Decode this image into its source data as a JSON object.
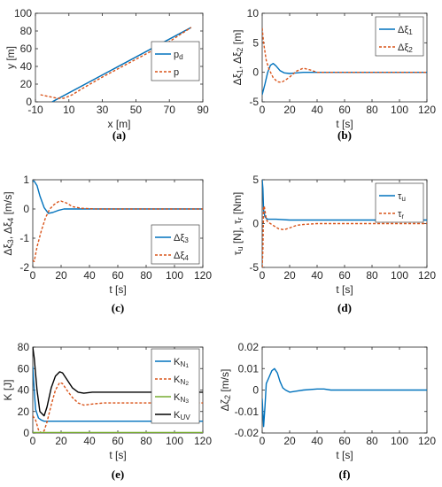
{
  "chart_data": [
    {
      "id": "a",
      "type": "line",
      "caption": "(a)",
      "xlabel": "x [m]",
      "ylabel": "y [m]",
      "xlim": [
        -10,
        90
      ],
      "ylim": [
        0,
        100
      ],
      "xticks": [
        "-10",
        "10",
        "30",
        "50",
        "70",
        "90"
      ],
      "yticks": [
        "0",
        "20",
        "40",
        "60",
        "80",
        "100"
      ],
      "legend": {
        "position": "right-middle",
        "entries": [
          "p_d",
          "p"
        ]
      },
      "series": [
        {
          "name": "p_d",
          "color": "#0072BD",
          "dash": false,
          "x": [
            0,
            83
          ],
          "y": [
            0,
            84
          ]
        },
        {
          "name": "p",
          "color": "#D95319",
          "dash": true,
          "x": [
            -7,
            -2,
            3,
            7,
            12,
            18,
            30,
            50,
            70,
            83
          ],
          "y": [
            8,
            6,
            4,
            4,
            8,
            15,
            28,
            48,
            68,
            84
          ]
        }
      ],
      "annotation_line": {
        "color": "#555555",
        "x": [
          0,
          83
        ],
        "y": [
          0,
          84
        ]
      }
    },
    {
      "id": "b",
      "type": "line",
      "caption": "(b)",
      "xlabel": "t [s]",
      "ylabel": "Δξ_1, Δξ_2 [m]",
      "xlim": [
        0,
        120
      ],
      "ylim": [
        -5,
        10
      ],
      "xticks": [
        "0",
        "20",
        "40",
        "60",
        "80",
        "100",
        "120"
      ],
      "yticks": [
        "-5",
        "0",
        "5",
        "10"
      ],
      "legend": {
        "position": "top-right",
        "entries": [
          "Δξ_1",
          "Δξ_2"
        ]
      },
      "series": [
        {
          "name": "Δξ_1",
          "color": "#0072BD",
          "dash": false,
          "x": [
            0,
            2,
            4,
            6,
            8,
            10,
            13,
            16,
            20,
            25,
            30,
            40,
            60,
            120
          ],
          "y": [
            -3.8,
            -2,
            0,
            1.2,
            1.5,
            1.1,
            0.3,
            -0.1,
            -0.2,
            -0.1,
            0,
            0,
            0,
            0
          ]
        },
        {
          "name": "Δξ_2",
          "color": "#D95319",
          "dash": true,
          "x": [
            0,
            1,
            3,
            5,
            8,
            11,
            14,
            17,
            20,
            25,
            30,
            35,
            40,
            50,
            120
          ],
          "y": [
            7.5,
            5,
            2,
            0.5,
            -0.9,
            -1.6,
            -1.7,
            -1.3,
            -0.8,
            0.2,
            0.7,
            0.4,
            0,
            0,
            0
          ]
        }
      ]
    },
    {
      "id": "c",
      "type": "line",
      "caption": "(c)",
      "xlabel": "t [s]",
      "ylabel": "Δξ_3, Δξ_4 [m/s]",
      "xlim": [
        0,
        120
      ],
      "ylim": [
        -2,
        1
      ],
      "xticks": [
        "0",
        "20",
        "40",
        "60",
        "80",
        "100",
        "120"
      ],
      "yticks": [
        "-2",
        "-1",
        "0",
        "1"
      ],
      "legend": {
        "position": "bottom-right",
        "entries": [
          "Δξ_3",
          "Δξ_4"
        ]
      },
      "series": [
        {
          "name": "Δξ_3",
          "color": "#0072BD",
          "dash": false,
          "x": [
            0,
            1,
            3,
            5,
            8,
            11,
            14,
            18,
            22,
            30,
            40,
            120
          ],
          "y": [
            0.95,
            0.95,
            0.8,
            0.45,
            0.05,
            -0.15,
            -0.12,
            -0.05,
            0,
            0,
            0,
            0
          ]
        },
        {
          "name": "Δξ_4",
          "color": "#D95319",
          "dash": true,
          "x": [
            0,
            1,
            3,
            6,
            9,
            12,
            15,
            18,
            20,
            24,
            28,
            35,
            45,
            120
          ],
          "y": [
            -1.75,
            -1.8,
            -1.3,
            -0.75,
            -0.3,
            0,
            0.15,
            0.25,
            0.27,
            0.2,
            0.08,
            0.02,
            0,
            0
          ]
        }
      ]
    },
    {
      "id": "d",
      "type": "line",
      "caption": "(d)",
      "xlabel": "t [s]",
      "ylabel": "τ_u [N], τ_r [Nm]",
      "xlim": [
        0,
        120
      ],
      "ylim": [
        -5,
        5
      ],
      "xticks": [
        "0",
        "20",
        "40",
        "60",
        "80",
        "100",
        "120"
      ],
      "yticks": [
        "-5",
        "0",
        "5"
      ],
      "legend": {
        "position": "top-right",
        "entries": [
          "τ_u",
          "τ_r"
        ]
      },
      "series": [
        {
          "name": "τ_u",
          "color": "#0072BD",
          "dash": false,
          "x": [
            0,
            0.5,
            1,
            2,
            3,
            4,
            6,
            10,
            20,
            120
          ],
          "y": [
            5,
            4,
            1.5,
            0.8,
            0.6,
            0.5,
            0.5,
            0.5,
            0.4,
            0.4
          ]
        },
        {
          "name": "τ_r",
          "color": "#D95319",
          "dash": true,
          "x": [
            0,
            0.5,
            1,
            1.5,
            2,
            3,
            4,
            6,
            9,
            12,
            16,
            20,
            25,
            30,
            40,
            120
          ],
          "y": [
            -5,
            -3,
            1.8,
            2,
            1.5,
            0.5,
            0.2,
            0,
            -0.3,
            -0.6,
            -0.7,
            -0.5,
            -0.2,
            -0.1,
            0,
            0
          ]
        }
      ]
    },
    {
      "id": "e",
      "type": "line",
      "caption": "(e)",
      "xlabel": "t [s]",
      "ylabel": "K [J]",
      "xlim": [
        0,
        120
      ],
      "ylim": [
        0,
        80
      ],
      "xticks": [
        "0",
        "20",
        "40",
        "60",
        "80",
        "100",
        "120"
      ],
      "yticks": [
        "0",
        "20",
        "40",
        "60",
        "80"
      ],
      "legend": {
        "position": "right",
        "entries": [
          "K_N_1",
          "K_N_2",
          "K_N_3",
          "K_UV"
        ]
      },
      "series": [
        {
          "name": "K_N_1",
          "color": "#0072BD",
          "dash": false,
          "x": [
            0,
            1,
            2,
            4,
            6,
            8,
            10,
            15,
            20,
            40,
            60,
            120
          ],
          "y": [
            62,
            40,
            22,
            14,
            12,
            11,
            11,
            11,
            11,
            11,
            11,
            11
          ]
        },
        {
          "name": "K_N_2",
          "color": "#D95319",
          "dash": true,
          "x": [
            0,
            2,
            4,
            6,
            8,
            10,
            13,
            16,
            19,
            21,
            24,
            28,
            32,
            36,
            42,
            50,
            60,
            120
          ],
          "y": [
            16,
            12,
            3,
            0,
            2,
            10,
            26,
            40,
            47,
            46,
            40,
            33,
            28,
            26,
            27,
            28,
            28,
            28
          ]
        },
        {
          "name": "K_N_3",
          "color": "#77AC30",
          "dash": false,
          "x": [
            0,
            120
          ],
          "y": [
            0.5,
            0.5
          ]
        },
        {
          "name": "K_UV",
          "color": "#000000",
          "dash": false,
          "x": [
            0,
            1,
            3,
            5,
            8,
            10,
            13,
            16,
            19,
            21,
            24,
            28,
            32,
            36,
            42,
            50,
            60,
            120
          ],
          "y": [
            80,
            70,
            40,
            20,
            16,
            24,
            42,
            53,
            57,
            56,
            50,
            42,
            38,
            37,
            38,
            38,
            38,
            38
          ]
        }
      ]
    },
    {
      "id": "f",
      "type": "line",
      "caption": "(f)",
      "xlabel": "t [s]",
      "ylabel": "Δζ_2 [m/s]",
      "xlim": [
        0,
        120
      ],
      "ylim": [
        -0.02,
        0.02
      ],
      "xticks": [
        "0",
        "20",
        "40",
        "60",
        "80",
        "100",
        "120"
      ],
      "yticks": [
        "-0.02",
        "-0.01",
        "0",
        "0.01",
        "0.02"
      ],
      "legend": null,
      "series": [
        {
          "color": "#0072BD",
          "dash": false,
          "x": [
            0,
            1,
            2,
            3,
            5,
            7,
            9,
            11,
            13,
            15,
            17,
            20,
            25,
            30,
            40,
            45,
            50,
            120
          ],
          "y": [
            -0.004,
            -0.017,
            -0.008,
            0.003,
            0.006,
            0.009,
            0.01,
            0.008,
            0.004,
            0.001,
            0,
            -0.001,
            -0.0005,
            0,
            0.0005,
            0.0005,
            0,
            0
          ]
        }
      ]
    }
  ]
}
